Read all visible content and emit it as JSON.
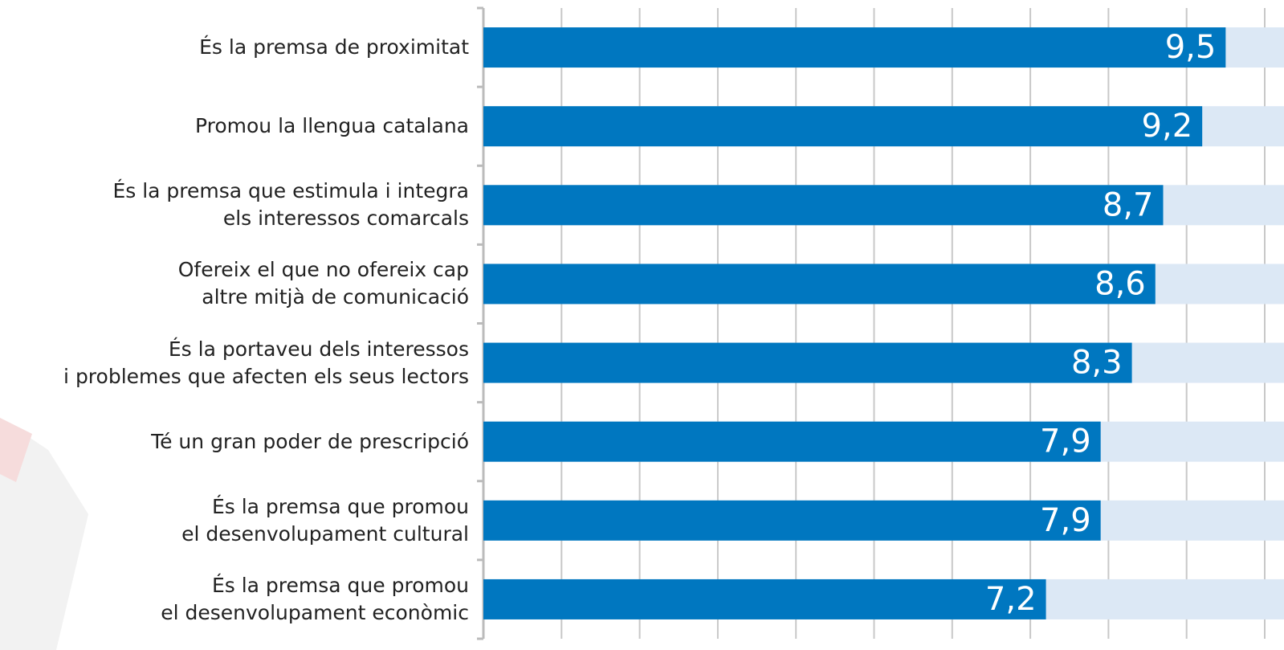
{
  "chart_data": {
    "type": "bar",
    "orientation": "horizontal",
    "categories": [
      "És la premsa de proximitat",
      "Promou la llengua catalana",
      "És la premsa que estimula i integra\nels interessos comarcals",
      "Ofereix el que no ofereix cap\naltre mitjà de comunicació",
      "És la portaveu dels interessos\ni problemes que afecten els seus lectors",
      "Té un gran poder de prescripció",
      "És la premsa que promou\nel desenvolupament cultural",
      "És la premsa que promou\nel desenvolupament econòmic"
    ],
    "values": [
      9.5,
      9.2,
      8.7,
      8.6,
      8.3,
      7.9,
      7.9,
      7.2
    ],
    "value_labels": [
      "9,5",
      "9,2",
      "8,7",
      "8,6",
      "8,3",
      "7,9",
      "7,9",
      "7,2"
    ],
    "color": "#0077c0",
    "background_color": "#dce8f5",
    "xlim": [
      0,
      10
    ],
    "xticks": [
      0,
      1,
      2,
      3,
      4,
      5,
      6,
      7,
      8,
      9,
      10
    ],
    "grid": true
  }
}
